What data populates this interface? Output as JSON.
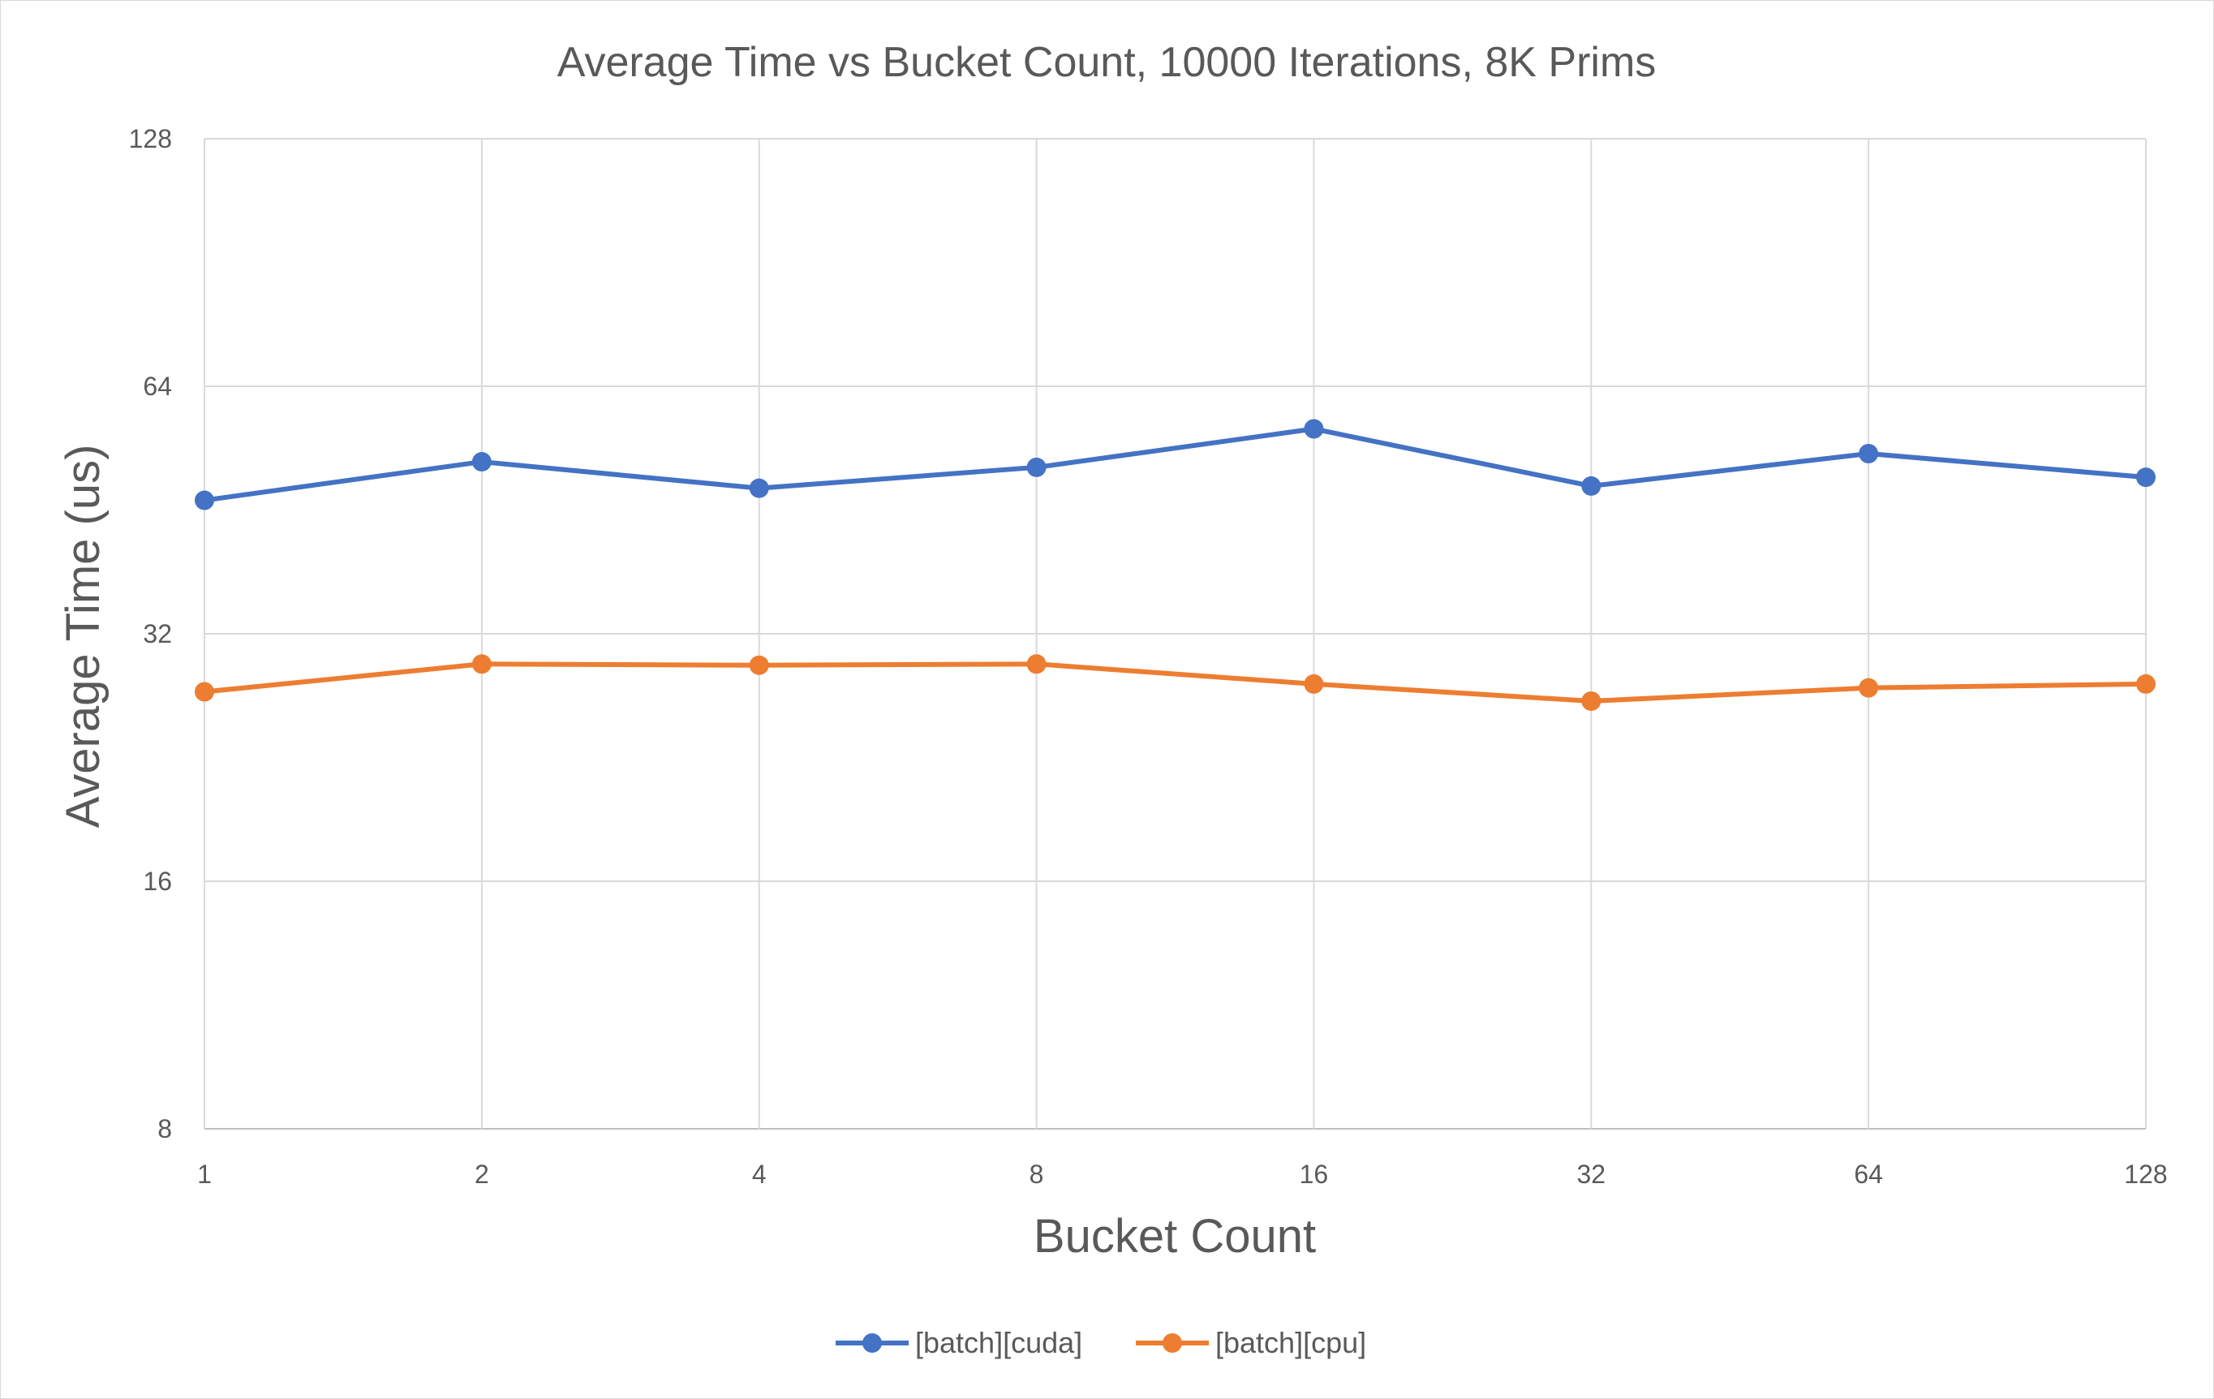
{
  "chart_data": {
    "type": "line",
    "title": "Average Time vs Bucket Count, 10000 Iterations, 8K Prims",
    "xlabel": "Bucket Count",
    "ylabel": "Average Time (us)",
    "x_scale": "log2",
    "y_scale": "log2",
    "categories": [
      "1",
      "2",
      "4",
      "8",
      "16",
      "32",
      "64",
      "128"
    ],
    "x": [
      1,
      2,
      4,
      8,
      16,
      32,
      64,
      128
    ],
    "yticks": [
      "8",
      "16",
      "32",
      "64",
      "128"
    ],
    "ylim": [
      8,
      128
    ],
    "grid": true,
    "legend_position": "bottom",
    "series": [
      {
        "name": "[batch][cuda]",
        "color": "#4472C4",
        "values": [
          46.5,
          51.8,
          48.1,
          51.0,
          56.8,
          48.4,
          53.0,
          49.6
        ]
      },
      {
        "name": "[batch][cpu]",
        "color": "#ED7D31",
        "values": [
          27.2,
          29.4,
          29.3,
          29.4,
          27.8,
          26.5,
          27.5,
          27.8
        ]
      }
    ]
  }
}
